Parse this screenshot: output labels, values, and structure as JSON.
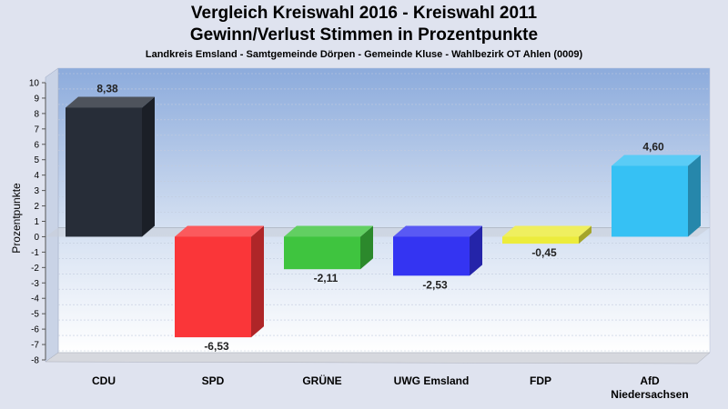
{
  "chart_data": {
    "type": "bar",
    "title": "Vergleich Kreiswahl 2016 - Kreiswahl 2011",
    "title2": "Gewinn/Verlust Stimmen in Prozentpunkte",
    "subtitle": "Landkreis Emsland - Samtgemeinde Dörpen - Gemeinde Kluse - Wahlbezirk OT Ahlen (0009)",
    "ylabel": "Prozentpunkte",
    "ylim": [
      -8,
      10
    ],
    "yticks": [
      "-8",
      "-7",
      "-6",
      "-5",
      "-4",
      "-3",
      "-2",
      "-1",
      "0",
      "1",
      "2",
      "3",
      "4",
      "5",
      "6",
      "7",
      "8",
      "9",
      "10"
    ],
    "grid": true,
    "categories": [
      [
        "CDU"
      ],
      [
        "SPD"
      ],
      [
        "GRÜNE"
      ],
      [
        "UWG Emsland"
      ],
      [
        "FDP"
      ],
      [
        "AfD",
        "Niedersachsen"
      ]
    ],
    "values": [
      8.38,
      -6.53,
      -2.11,
      -2.53,
      -0.45,
      4.6
    ],
    "value_labels": [
      "8,38",
      "-6,53",
      "-2,11",
      "-2,53",
      "-0,45",
      "4,60"
    ],
    "colors": [
      "#272d38",
      "#fa3639",
      "#3fc43f",
      "#3434f2",
      "#ecec3c",
      "#36c1f4"
    ]
  }
}
